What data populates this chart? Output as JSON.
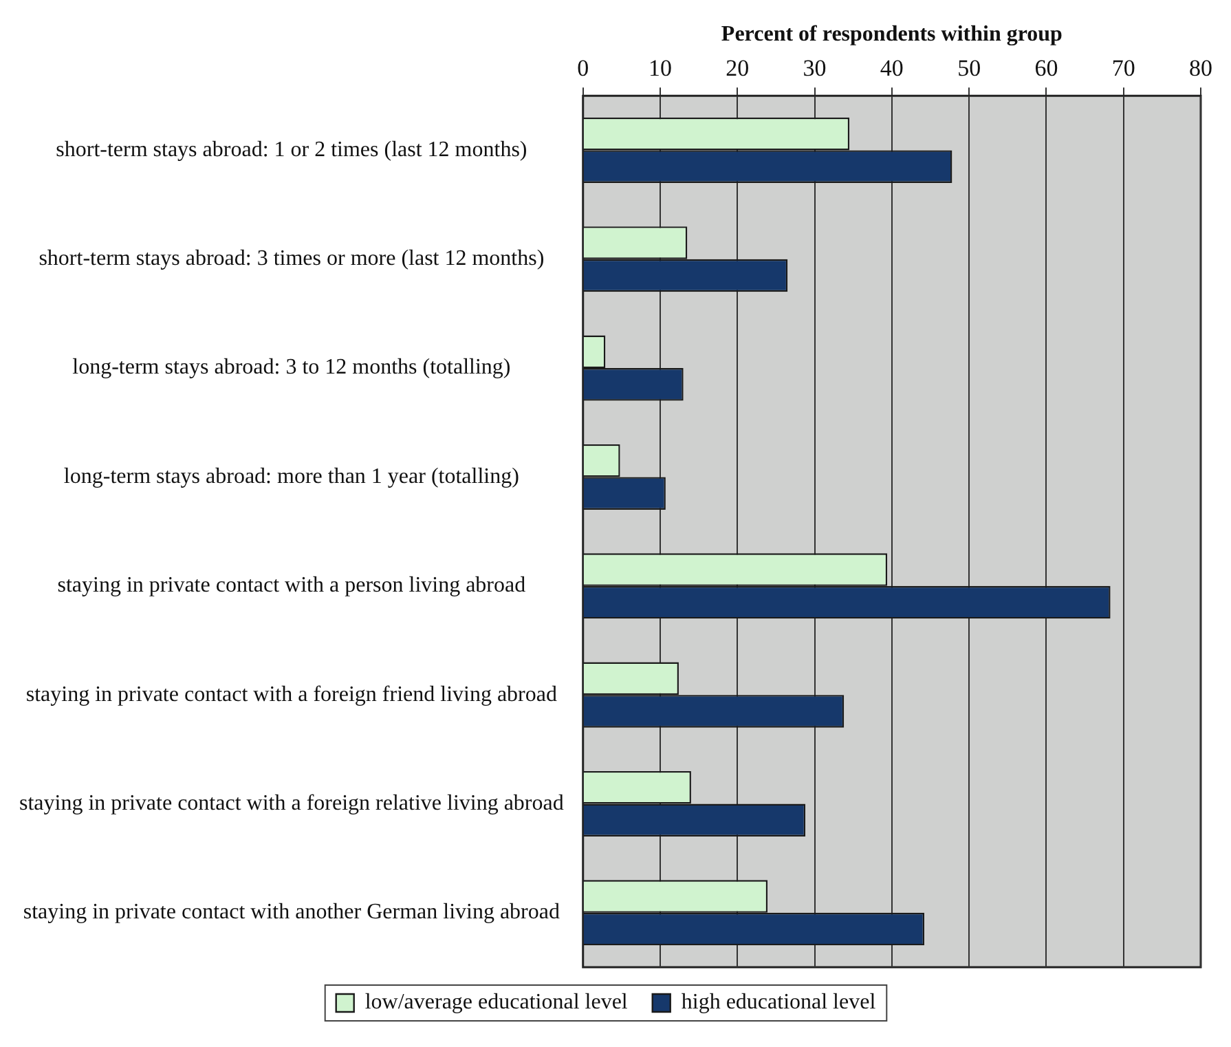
{
  "chart_data": {
    "type": "bar",
    "orientation": "horizontal",
    "xlabel": "Percent of respondents within group",
    "categories": [
      "short-term stays abroad: 1 or 2 times (last 12 months)",
      "short-term stays abroad: 3 times or more (last 12 months)",
      "long-term stays abroad: 3 to 12 months (totalling)",
      "long-term stays abroad: more than 1 year (totalling)",
      "staying in private contact with a person living abroad",
      "staying in private contact with a foreign friend living abroad",
      "staying in private contact with a foreign relative living abroad",
      "staying in private contact with another German living abroad"
    ],
    "series": [
      {
        "name": "low/average educational level",
        "color": "#d0f3cf",
        "values": [
          34.5,
          13.5,
          2.9,
          4.8,
          39.4,
          12.4,
          14.0,
          23.9
        ]
      },
      {
        "name": "high educational level",
        "color": "#16386b",
        "values": [
          47.8,
          26.5,
          13.0,
          10.7,
          68.3,
          33.8,
          28.8,
          44.2
        ]
      }
    ],
    "xlim": [
      0,
      80
    ],
    "xticks": [
      0,
      10,
      20,
      30,
      40,
      50,
      60,
      70,
      80
    ],
    "grid": "x",
    "legend": "bottom"
  }
}
